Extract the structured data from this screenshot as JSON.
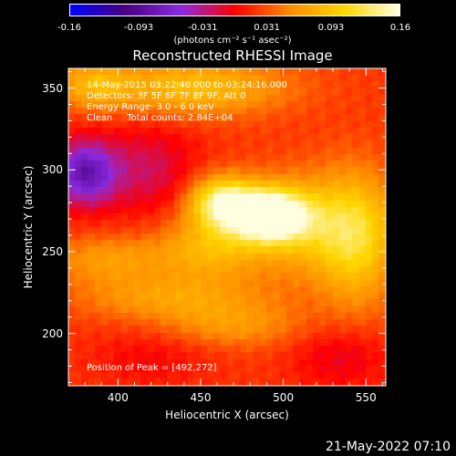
{
  "colorbar": {
    "tick_labels": [
      "-0.16",
      "-0.093",
      "-0.031",
      "0.031",
      "0.093",
      "0.16"
    ],
    "tick_values": [
      -0.16,
      -0.093,
      -0.031,
      0.031,
      0.093,
      0.16
    ],
    "range": [
      -0.16,
      0.16
    ],
    "units_label": "(photons cm⁻² s⁻¹ asec⁻²)",
    "colors": [
      "#0000ff",
      "#4b0082",
      "#8a2be2",
      "#ff0000",
      "#ff8c00",
      "#ffd700",
      "#ffffe0"
    ]
  },
  "chart_data": {
    "type": "heatmap",
    "title": "Reconstructed RHESSI Image",
    "xlabel": "Heliocentric X (arcsec)",
    "ylabel": "Heliocentric Y (arcsec)",
    "xlim": [
      370,
      562
    ],
    "ylim": [
      168,
      362
    ],
    "x_ticks": [
      400,
      450,
      500,
      550
    ],
    "y_ticks": [
      200,
      250,
      300,
      350
    ],
    "x_tick_labels": [
      "400",
      "450",
      "500",
      "550"
    ],
    "y_tick_labels": [
      "200",
      "250",
      "300",
      "350"
    ],
    "annotations": [
      "14-May-2015 03:22:40.000 to 03:24:16.000",
      "Detectors: 3F 5F 6F 7F 8F 9F, Att 0",
      "Energy Range: 3.0 - 6.0 keV",
      "Clean     Total counts: 2.84E+04"
    ],
    "peak_label": "Position of Peak = [492,272]",
    "peak": [
      492,
      272
    ],
    "sources": [
      {
        "x": 492,
        "y": 272,
        "amp": 0.16,
        "sx": 16,
        "sy": 11
      },
      {
        "x": 463,
        "y": 280,
        "amp": 0.12,
        "sx": 14,
        "sy": 11
      },
      {
        "x": 520,
        "y": 265,
        "amp": 0.07,
        "sx": 30,
        "sy": 22
      },
      {
        "x": 455,
        "y": 252,
        "amp": 0.06,
        "sx": 22,
        "sy": 14
      },
      {
        "x": 545,
        "y": 255,
        "amp": 0.06,
        "sx": 16,
        "sy": 30
      },
      {
        "x": 445,
        "y": 350,
        "amp": 0.07,
        "sx": 40,
        "sy": 12
      },
      {
        "x": 385,
        "y": 352,
        "amp": 0.05,
        "sx": 15,
        "sy": 10
      },
      {
        "x": 395,
        "y": 245,
        "amp": 0.045,
        "sx": 25,
        "sy": 10
      },
      {
        "x": 430,
        "y": 222,
        "amp": 0.045,
        "sx": 40,
        "sy": 10
      },
      {
        "x": 470,
        "y": 205,
        "amp": 0.04,
        "sx": 30,
        "sy": 10
      },
      {
        "x": 380,
        "y": 298,
        "amp": -0.1,
        "sx": 14,
        "sy": 14
      },
      {
        "x": 420,
        "y": 300,
        "amp": -0.04,
        "sx": 20,
        "sy": 20
      },
      {
        "x": 535,
        "y": 185,
        "amp": -0.03,
        "sx": 20,
        "sy": 14
      },
      {
        "x": 420,
        "y": 185,
        "amp": -0.02,
        "sx": 25,
        "sy": 12
      }
    ]
  },
  "footer": {
    "timestamp": "21-May-2022 07:10"
  }
}
